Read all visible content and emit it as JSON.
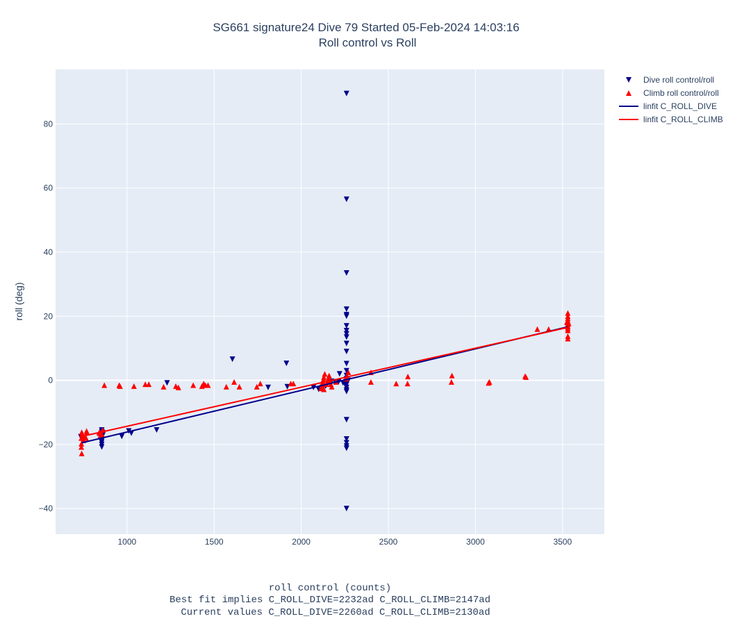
{
  "chart_data": {
    "type": "scatter",
    "title_line1": "SG661 signature24 Dive 79 Started 05-Feb-2024 14:03:16",
    "title_line2": "Roll control vs Roll",
    "xlabel": "roll control (counts)",
    "ylabel": "roll (deg)",
    "notes": [
      "Best fit implies C_ROLL_DIVE=2232ad C_ROLL_CLIMB=2147ad",
      "Current values C_ROLL_DIVE=2260ad C_ROLL_CLIMB=2130ad"
    ],
    "xlim": [
      590,
      3740
    ],
    "ylim": [
      -48,
      97
    ],
    "xticks": [
      1000,
      1500,
      2000,
      2500,
      3000,
      3500
    ],
    "yticks": [
      -40,
      -20,
      0,
      20,
      40,
      60,
      80
    ],
    "grid": true,
    "legend_position": "top-right outside",
    "colors": {
      "dive": "#00008b",
      "climb": "#ff0000",
      "plot_bg": "#e5ecf6",
      "grid": "#ffffff"
    },
    "series": [
      {
        "name": "Dive roll control/roll",
        "kind": "markers",
        "marker": "triangle-down",
        "color": "#00008b",
        "points": [
          [
            2260,
            89.5
          ],
          [
            2260,
            56.5
          ],
          [
            2260,
            33.5
          ],
          [
            2260,
            22.2
          ],
          [
            2260,
            20.5
          ],
          [
            2260,
            20
          ],
          [
            2260,
            17
          ],
          [
            2260,
            15.5
          ],
          [
            2260,
            14.5
          ],
          [
            2260,
            13.5
          ],
          [
            2260,
            11.5
          ],
          [
            2260,
            9
          ],
          [
            2260,
            5.2
          ],
          [
            2260,
            3
          ],
          [
            2260,
            1.5
          ],
          [
            2260,
            0.5
          ],
          [
            2260,
            -0.3
          ],
          [
            2260,
            -0.8
          ],
          [
            2260,
            -1.3
          ],
          [
            2260,
            -2.2
          ],
          [
            2260,
            -3
          ],
          [
            2260,
            -3.5
          ],
          [
            2260,
            -12.3
          ],
          [
            2260,
            -18.3
          ],
          [
            2260,
            -19.5
          ],
          [
            2260,
            -20.5
          ],
          [
            2260,
            -21.2
          ],
          [
            2260,
            -40
          ],
          [
            2255,
            -0.5
          ],
          [
            2265,
            -0.2
          ],
          [
            2270,
            0
          ],
          [
            2250,
            -1
          ],
          [
            2240,
            -0.8
          ],
          [
            2220,
            2
          ],
          [
            2215,
            -0.4
          ],
          [
            2195,
            -0.5
          ],
          [
            2175,
            -0.3
          ],
          [
            2140,
            -1.8
          ],
          [
            2120,
            -2.2
          ],
          [
            2110,
            -2.5
          ],
          [
            2100,
            -2.8
          ],
          [
            2070,
            -2.2
          ],
          [
            1915,
            5.3
          ],
          [
            1920,
            -2
          ],
          [
            1810,
            -2.2
          ],
          [
            1605,
            6.6
          ],
          [
            1230,
            -0.8
          ],
          [
            1170,
            -15.5
          ],
          [
            1025,
            -16.5
          ],
          [
            1010,
            -15.8
          ],
          [
            970,
            -17.5
          ],
          [
            855,
            -15.5
          ],
          [
            855,
            -16
          ],
          [
            855,
            -16.8
          ],
          [
            855,
            -17.3
          ],
          [
            855,
            -17.8
          ],
          [
            855,
            -18.3
          ],
          [
            855,
            -18.8
          ],
          [
            855,
            -19.3
          ],
          [
            855,
            -20
          ],
          [
            855,
            -20.8
          ],
          [
            860,
            -16.3
          ],
          [
            862,
            -17
          ],
          [
            850,
            -17.8
          ],
          [
            848,
            -18.5
          ],
          [
            745,
            -19
          ],
          [
            740,
            -18.2
          ],
          [
            735,
            -17.6
          ]
        ]
      },
      {
        "name": "Climb roll control/roll",
        "kind": "markers",
        "marker": "triangle-up",
        "color": "#ff0000",
        "points": [
          [
            3530,
            21
          ],
          [
            3530,
            20
          ],
          [
            3530,
            19.3
          ],
          [
            3530,
            18.6
          ],
          [
            3530,
            18
          ],
          [
            3530,
            17.4
          ],
          [
            3530,
            16.8
          ],
          [
            3530,
            16.2
          ],
          [
            3530,
            15.6
          ],
          [
            3530,
            13.8
          ],
          [
            3530,
            13
          ],
          [
            3535,
            17.8
          ],
          [
            3525,
            18.2
          ],
          [
            3420,
            16
          ],
          [
            3355,
            16
          ],
          [
            3290,
            1
          ],
          [
            3285,
            1.3
          ],
          [
            3080,
            -0.5
          ],
          [
            3075,
            -0.8
          ],
          [
            2865,
            1.5
          ],
          [
            2862,
            -0.5
          ],
          [
            2612,
            1.2
          ],
          [
            2610,
            -1
          ],
          [
            2545,
            -1
          ],
          [
            2400,
            2.5
          ],
          [
            2400,
            -0.5
          ],
          [
            2270,
            2.5
          ],
          [
            2262,
            1
          ],
          [
            2258,
            0.5
          ],
          [
            2160,
            1.5
          ],
          [
            2155,
            0.5
          ],
          [
            2150,
            -0.5
          ],
          [
            2145,
            -1.2
          ],
          [
            2135,
            2
          ],
          [
            2130,
            1
          ],
          [
            2128,
            0.3
          ],
          [
            2125,
            -0.5
          ],
          [
            2122,
            -1
          ],
          [
            2120,
            -1.5
          ],
          [
            2118,
            -2
          ],
          [
            2115,
            -2.5
          ],
          [
            2130,
            -2.8
          ],
          [
            2165,
            0
          ],
          [
            2170,
            -1.2
          ],
          [
            2175,
            -2
          ],
          [
            2200,
            -0.5
          ],
          [
            1955,
            -1
          ],
          [
            1940,
            -1
          ],
          [
            1765,
            -1
          ],
          [
            1745,
            -2
          ],
          [
            1645,
            -2
          ],
          [
            1615,
            -0.5
          ],
          [
            1570,
            -2
          ],
          [
            1465,
            -1.5
          ],
          [
            1450,
            -1.5
          ],
          [
            1440,
            -1
          ],
          [
            1430,
            -1.8
          ],
          [
            1380,
            -1.5
          ],
          [
            1295,
            -2.2
          ],
          [
            1280,
            -1.8
          ],
          [
            1210,
            -2
          ],
          [
            1125,
            -1.2
          ],
          [
            1105,
            -1.2
          ],
          [
            1040,
            -1.8
          ],
          [
            960,
            -1.8
          ],
          [
            955,
            -1.5
          ],
          [
            870,
            -1.5
          ],
          [
            860,
            -15.5
          ],
          [
            855,
            -16.8
          ],
          [
            850,
            -17.2
          ],
          [
            845,
            -16.5
          ],
          [
            840,
            -16.3
          ],
          [
            770,
            -16.2
          ],
          [
            768,
            -15.8
          ],
          [
            765,
            -18
          ],
          [
            760,
            -17.8
          ],
          [
            750,
            -18.7
          ],
          [
            745,
            -17.3
          ],
          [
            742,
            -16.8
          ],
          [
            740,
            -16.2
          ],
          [
            738,
            -18
          ],
          [
            738,
            -19.8
          ],
          [
            738,
            -20.8
          ],
          [
            740,
            -22.8
          ]
        ]
      },
      {
        "name": "linfit C_ROLL_DIVE",
        "kind": "line",
        "color": "#00008b",
        "points": [
          [
            740,
            -19.5
          ],
          [
            3530,
            16.7
          ]
        ]
      },
      {
        "name": "linfit C_ROLL_CLIMB",
        "kind": "line",
        "color": "#ff0000",
        "points": [
          [
            740,
            -17.5
          ],
          [
            3530,
            16.5
          ]
        ]
      }
    ]
  }
}
